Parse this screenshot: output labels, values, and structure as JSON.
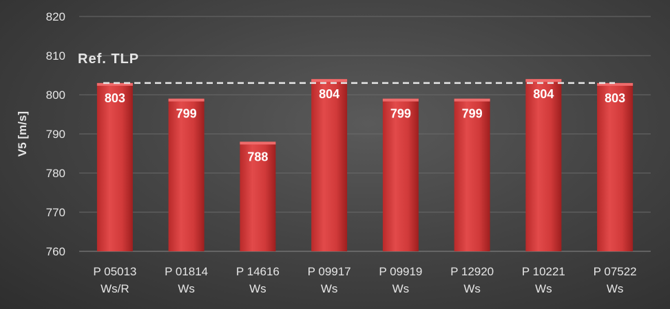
{
  "chart_data": {
    "type": "bar",
    "categories": [
      [
        "P 05013",
        "Ws/R"
      ],
      [
        "P 01814",
        "Ws"
      ],
      [
        "P 14616",
        "Ws"
      ],
      [
        "P 09917",
        "Ws"
      ],
      [
        "P 09919",
        "Ws"
      ],
      [
        "P 12920",
        "Ws"
      ],
      [
        "P 10221",
        "Ws"
      ],
      [
        "P 07522",
        "Ws"
      ]
    ],
    "values": [
      803,
      799,
      788,
      804,
      799,
      799,
      804,
      803
    ],
    "ylabel": "V5 [m/s]",
    "ylim": [
      760,
      820
    ],
    "yticks": [
      760,
      770,
      780,
      790,
      800,
      810,
      820
    ],
    "grid": true,
    "data_labels": true,
    "reference_line": {
      "label": "Ref. TLP",
      "value": 803,
      "style": "dashed"
    },
    "colors": {
      "bar": "#d94040",
      "bar_dark": "#a82222",
      "grid": "#6a6a6a",
      "ref_line": "#e8e8e8",
      "text": "#e6e6e6"
    }
  }
}
